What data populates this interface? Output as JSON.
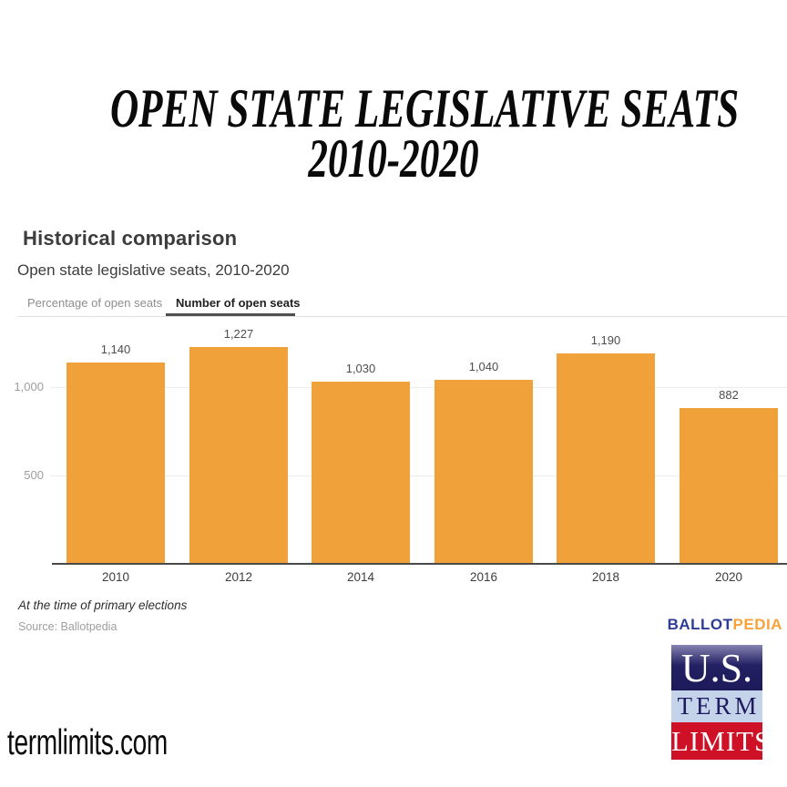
{
  "poster": {
    "title_line1": "OPEN STATE LEGISLATIVE SEATS",
    "title_line2": "2010-2020",
    "website": "termlimits.com"
  },
  "widget": {
    "heading": "Historical comparison",
    "subtitle": "Open state legislative seats, 2010-2020",
    "tabs": [
      {
        "label": "Percentage of open seats",
        "active": false
      },
      {
        "label": "Number of open seats",
        "active": true
      }
    ],
    "footnote": "At the time of primary elections",
    "source": "Source: Ballotpedia"
  },
  "chart_data": {
    "type": "bar",
    "categories": [
      "2010",
      "2012",
      "2014",
      "2016",
      "2018",
      "2020"
    ],
    "values": [
      1140,
      1227,
      1030,
      1040,
      1190,
      882
    ],
    "value_labels": [
      "1,140",
      "1,227",
      "1,030",
      "1,040",
      "1,190",
      "882"
    ],
    "title": "Open state legislative seats, 2010-2020",
    "xlabel": "",
    "ylabel": "",
    "yticks": [
      500,
      1000
    ],
    "ytick_labels": [
      "500",
      "1,000"
    ],
    "ylim": [
      0,
      1400
    ],
    "grid": true,
    "legend": "none",
    "bar_color": "#f0a139"
  },
  "logos": {
    "ballotpedia": {
      "part1": "BALLOT",
      "part2": "PEDIA",
      "blue": "#2d3c96",
      "orange": "#f9a23c"
    },
    "ustl": {
      "line1": "U.S.",
      "line2": "TERM",
      "line3": "LIMITS",
      "navy": "#1e1a5e",
      "light_blue": "#c4d3e9",
      "red": "#ce1126"
    }
  }
}
